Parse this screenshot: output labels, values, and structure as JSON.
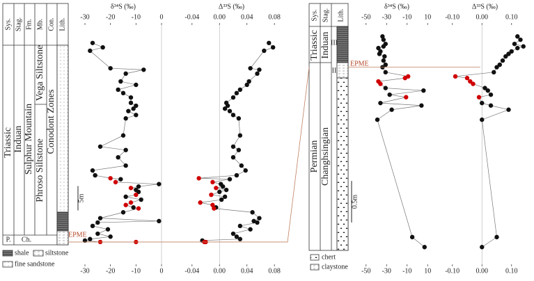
{
  "chart_data": [
    {
      "type": "line",
      "title": "δ³⁴S (‰)",
      "values": [
        -27,
        -23,
        -28,
        -20,
        -7,
        -14,
        -16,
        -10,
        -17,
        -15,
        -12,
        -12,
        -10,
        -11,
        -13,
        -10,
        -14,
        -15,
        -24,
        -14,
        -17,
        -14,
        -27,
        -26,
        -20,
        -16,
        -18,
        -1,
        -9,
        -12,
        -10,
        -9,
        -10,
        -14,
        -8,
        -12,
        -14,
        -11,
        -9,
        -15,
        -24,
        -1,
        -25,
        -27,
        -21,
        -25,
        -20,
        -28,
        -30,
        -24,
        -10
      ],
      "heights": [
        40.9,
        40.0,
        39.3,
        35.7,
        35.4,
        34.6,
        33.0,
        32.3,
        31.3,
        30.6,
        29.7,
        28.6,
        28.0,
        27.4,
        26.9,
        26.1,
        25.4,
        21.9,
        19.6,
        18.9,
        17.4,
        15.7,
        14.7,
        13.7,
        13.1,
        12.9,
        12.3,
        11.9,
        11.4,
        11.1,
        10.7,
        10.3,
        9.7,
        9.3,
        8.7,
        8.1,
        7.6,
        7.1,
        6.9,
        6.1,
        4.9,
        4.3,
        4.0,
        3.3,
        2.6,
        1.7,
        1.1,
        0.6,
        0.3,
        0.0,
        0.0
      ],
      "colors": [
        "#111111",
        "#111111",
        "#111111",
        "#111111",
        "#111111",
        "#111111",
        "#111111",
        "#111111",
        "#111111",
        "#111111",
        "#111111",
        "#111111",
        "#111111",
        "#111111",
        "#111111",
        "#111111",
        "#111111",
        "#111111",
        "#111111",
        "#111111",
        "#111111",
        "#111111",
        "#111111",
        "#111111",
        "#d00000",
        "#111111",
        "#d00000",
        "#111111",
        "#111111",
        "#d00000",
        "#111111",
        "#111111",
        "#d00000",
        "#111111",
        "#111111",
        "#d00000",
        "#d00000",
        "#111111",
        "#d00000",
        "#111111",
        "#111111",
        "#111111",
        "#111111",
        "#111111",
        "#111111",
        "#111111",
        "#111111",
        "#111111",
        "#111111",
        "#d00000",
        "#d00000"
      ],
      "xlim": [
        -33,
        3
      ],
      "xticks": [
        -30,
        -20,
        -10,
        0
      ],
      "ylim": [
        -4.3,
        44.3
      ],
      "zero_line": true
    },
    {
      "type": "line",
      "title": "Δ³³S (‰)",
      "values": [
        0.072,
        0.078,
        0.065,
        0.045,
        0.058,
        0.055,
        0.043,
        0.04,
        0.03,
        0.025,
        0.02,
        0.01,
        0.012,
        0.008,
        0.015,
        0.02,
        0.028,
        0.03,
        0.02,
        0.028,
        0.02,
        0.032,
        0.038,
        0.025,
        -0.03,
        0.015,
        -0.01,
        0.002,
        0.005,
        -0.005,
        0.01,
        0,
        -0.012,
        0.008,
        0.003,
        -0.028,
        -0.01,
        -0.005,
        -0.008,
        0.048,
        0.058,
        0.05,
        0.055,
        0.03,
        0.045,
        0.02,
        0.025,
        0.03,
        -0.025,
        -0.022,
        -0.02
      ],
      "heights": [
        40.9,
        40.0,
        39.3,
        35.7,
        35.4,
        34.6,
        33.0,
        32.3,
        31.3,
        30.6,
        29.7,
        28.6,
        28.0,
        27.4,
        26.9,
        26.1,
        25.4,
        21.9,
        19.6,
        18.9,
        17.4,
        15.7,
        14.7,
        13.7,
        13.1,
        12.9,
        12.3,
        11.9,
        11.4,
        11.1,
        10.7,
        10.3,
        9.7,
        9.3,
        8.7,
        8.1,
        7.6,
        7.1,
        6.9,
        6.1,
        4.9,
        4.3,
        4.0,
        3.3,
        2.6,
        1.7,
        1.1,
        0.6,
        0.3,
        0.0,
        0.0
      ],
      "colors": [
        "#111111",
        "#111111",
        "#111111",
        "#111111",
        "#111111",
        "#111111",
        "#111111",
        "#111111",
        "#111111",
        "#111111",
        "#111111",
        "#111111",
        "#111111",
        "#111111",
        "#111111",
        "#111111",
        "#111111",
        "#111111",
        "#111111",
        "#111111",
        "#111111",
        "#111111",
        "#111111",
        "#111111",
        "#d00000",
        "#111111",
        "#d00000",
        "#111111",
        "#111111",
        "#d00000",
        "#111111",
        "#111111",
        "#d00000",
        "#111111",
        "#111111",
        "#d00000",
        "#d00000",
        "#111111",
        "#d00000",
        "#111111",
        "#111111",
        "#111111",
        "#111111",
        "#111111",
        "#111111",
        "#111111",
        "#111111",
        "#111111",
        "#111111",
        "#d00000",
        "#d00000"
      ],
      "xlim": [
        -0.055,
        0.09
      ],
      "xticks": [
        -0.04,
        {
          "value": 0,
          "label": "0.00"
        },
        0.04,
        0.08
      ],
      "ylim": [
        -4.3,
        44.3
      ],
      "zero_line": true
    },
    {
      "type": "line",
      "title": "δ³⁴S (‰)",
      "values": [
        -34,
        -33,
        -31,
        -33,
        -38,
        -36,
        -37,
        -32,
        -33,
        -31,
        -34,
        -31,
        -9,
        -12,
        -38,
        -36,
        -31,
        6,
        -27,
        -11,
        -36,
        4,
        -25,
        -39,
        -5,
        7
      ],
      "heights": [
        0.37,
        0.33,
        0.28,
        0.25,
        0.23,
        0.19,
        0.16,
        0.13,
        0.08,
        0.03,
        0.0,
        -0.06,
        -0.11,
        -0.13,
        -0.17,
        -0.2,
        -0.25,
        -0.28,
        -0.33,
        -0.36,
        -0.43,
        -0.46,
        -0.51,
        -0.63,
        -2.04,
        -2.16
      ],
      "colors": [
        "#111111",
        "#111111",
        "#111111",
        "#111111",
        "#111111",
        "#111111",
        "#111111",
        "#111111",
        "#111111",
        "#111111",
        "#111111",
        "#111111",
        "#d00000",
        "#d00000",
        "#d00000",
        "#d00000",
        "#111111",
        "#111111",
        "#111111",
        "#d00000",
        "#111111",
        "#111111",
        "#111111",
        "#111111",
        "#111111",
        "#111111"
      ],
      "xlim": [
        -58,
        18
      ],
      "xticks": [
        -50,
        -30,
        -10,
        10
      ],
      "ylim": [
        -2.35,
        0.49
      ],
      "zero_line": true
    },
    {
      "type": "line",
      "title": "Δ³³S (‰)",
      "values": [
        0.12,
        0.13,
        0.11,
        0.14,
        0.12,
        0.1,
        0.09,
        0.08,
        0.07,
        0.06,
        0.05,
        0.04,
        -0.09,
        -0.05,
        -0.04,
        -0.03,
        0.01,
        0.02,
        0.03,
        -0.01,
        0,
        0.03,
        0.09,
        0,
        0.05,
        0
      ],
      "heights": [
        0.37,
        0.33,
        0.28,
        0.25,
        0.23,
        0.19,
        0.16,
        0.13,
        0.08,
        0.03,
        0.0,
        -0.06,
        -0.11,
        -0.13,
        -0.17,
        -0.2,
        -0.25,
        -0.28,
        -0.33,
        -0.36,
        -0.43,
        -0.46,
        -0.51,
        -0.63,
        -2.04,
        -2.16
      ],
      "colors": [
        "#111111",
        "#111111",
        "#111111",
        "#111111",
        "#111111",
        "#111111",
        "#111111",
        "#111111",
        "#111111",
        "#111111",
        "#111111",
        "#111111",
        "#d00000",
        "#d00000",
        "#d00000",
        "#d00000",
        "#111111",
        "#111111",
        "#111111",
        "#d00000",
        "#111111",
        "#111111",
        "#111111",
        "#111111",
        "#111111",
        "#111111"
      ],
      "xlim": [
        -0.13,
        0.15
      ],
      "xticks": [
        {
          "value": -0.1,
          "label": "-0.10"
        },
        {
          "value": 0,
          "label": "0.00"
        },
        {
          "value": 0.1,
          "label": "0.10"
        }
      ],
      "ylim": [
        -2.35,
        0.49
      ],
      "zero_line": true
    }
  ],
  "strat_columns": [
    {
      "headers": [
        "Sys.",
        "Stag.",
        "Fm.",
        "Mb.",
        "Con.",
        "Lith."
      ],
      "units": [
        "Triassic",
        "Induan",
        "Sulphur Mountain",
        "Vega Siltstone",
        "Phroso Siltstone",
        "Conodont Zones",
        "P.",
        "Ch."
      ],
      "scale_bar": {
        "label": "5m",
        "length": 5
      },
      "event": "EPME",
      "legend": [
        "shale",
        "siltstone",
        "fine sandstone"
      ]
    },
    {
      "headers": [
        "Sys.",
        "Stag.",
        "Lith."
      ],
      "units": [
        "Triassic",
        "Induan",
        "Permian",
        "Changhsingian",
        "III",
        "II"
      ],
      "scale_bar": {
        "label": "0.5m",
        "length": 0.5
      },
      "event": "EPME",
      "legend": [
        "chert",
        "claystone"
      ]
    }
  ]
}
